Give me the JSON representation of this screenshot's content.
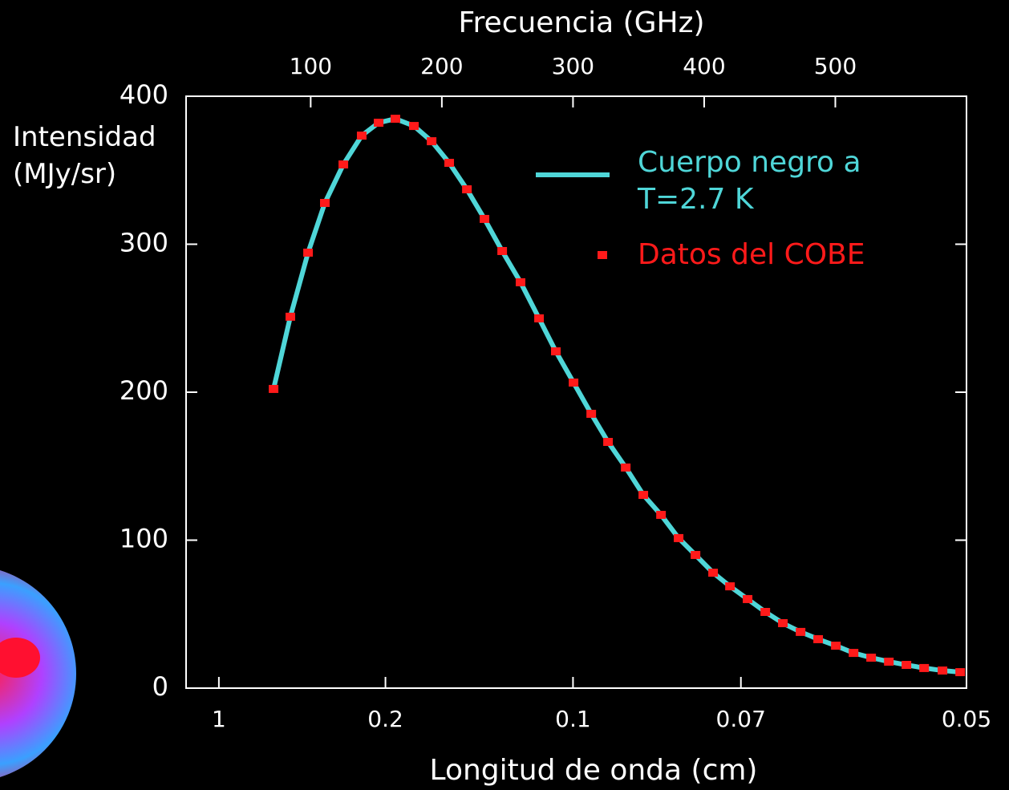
{
  "chart_data": {
    "type": "line",
    "xlabel": "Frecuencia (GHz)",
    "x2label": "Longitud de onda (cm)",
    "ylabel": "Intensidad (MJy/sr)",
    "x": [
      71.7,
      84.5,
      98.0,
      110.8,
      124.9,
      138.9,
      151.8,
      164.6,
      178.7,
      192.2,
      205.6,
      219.1,
      232.5,
      246.0,
      260.0,
      274.1,
      286.9,
      300.4,
      313.9,
      326.7,
      340.2,
      353.6,
      367.1,
      380.5,
      393.4,
      406.8,
      419.7,
      433.1,
      446.6,
      460.0,
      473.5,
      486.9,
      500.4,
      513.9,
      527.3,
      540.8,
      554.2,
      567.7,
      581.7,
      595.2
    ],
    "series": [
      {
        "name": "Cuerpo negro a T=2.7 K",
        "color": "#4fd6d8",
        "style": "line",
        "values": [
          202.2,
          251,
          294.3,
          327.9,
          353.9,
          373.4,
          382.1,
          384.8,
          379.9,
          369.6,
          355,
          337.1,
          317.1,
          295.4,
          274.3,
          249.9,
          227.6,
          206.5,
          185.4,
          166.4,
          149.1,
          130.6,
          117.1,
          101.4,
          90,
          78,
          68.8,
          60.2,
          51.5,
          43.9,
          38,
          33.1,
          28.7,
          23.8,
          20.6,
          17.9,
          15.7,
          13.6,
          11.9,
          10.8
        ]
      },
      {
        "name": "Datos del COBE",
        "color": "#ff1a1a",
        "style": "points",
        "values": [
          202.2,
          251,
          294.3,
          327.9,
          353.9,
          373.4,
          382.1,
          384.8,
          379.9,
          369.6,
          355,
          337.1,
          317.1,
          295.4,
          274.3,
          249.9,
          227.6,
          206.5,
          185.4,
          166.4,
          149.1,
          130.6,
          117.1,
          101.4,
          90,
          78,
          68.8,
          60.2,
          51.5,
          43.9,
          38,
          33.1,
          28.7,
          23.8,
          20.6,
          17.9,
          15.7,
          13.6,
          11.9,
          10.8
        ]
      }
    ],
    "xlim": [
      5,
      600
    ],
    "xticks": [
      100,
      200,
      300,
      400,
      500
    ],
    "x2ticks": [
      {
        "value": 30,
        "label": "1"
      },
      {
        "value": 157,
        "label": "0.2"
      },
      {
        "value": 300,
        "label": "0.1"
      },
      {
        "value": 428,
        "label": "0.07"
      },
      {
        "value": 600,
        "label": "0.05"
      }
    ],
    "ylim": [
      0,
      400
    ],
    "yticks": [
      0,
      100,
      200,
      300,
      400
    ]
  }
}
